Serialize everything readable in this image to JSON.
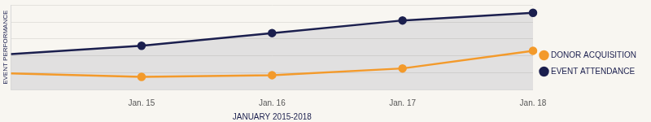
{
  "chart_data": {
    "type": "line",
    "categories": [
      null,
      "Jan. 15",
      "Jan. 16",
      "Jan. 17",
      "Jan. 18"
    ],
    "x_label": "JANUARY 2015-2018",
    "y_label": "EVENT PERFORMANCE",
    "series": [
      {
        "name": "EVENT ATTENDANCE",
        "color": "#1b1f4e",
        "type": "area",
        "values": [
          42,
          52,
          67,
          82,
          91
        ]
      },
      {
        "name": "DONOR ACQUISITION",
        "color": "#f39a2b",
        "type": "line",
        "values": [
          19,
          15,
          17,
          25,
          46
        ]
      }
    ],
    "ylim": [
      0,
      100
    ],
    "yticks": [
      0,
      20,
      40,
      60,
      80,
      100
    ],
    "grid": true,
    "legend": "right",
    "tick_labels": "x",
    "marker": "circle"
  }
}
